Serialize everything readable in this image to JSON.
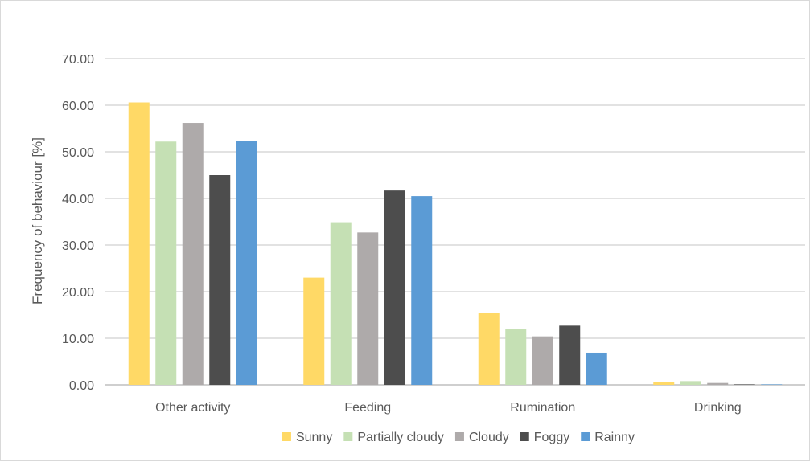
{
  "chart_data": {
    "type": "bar",
    "title": "",
    "xlabel": "",
    "ylabel": "Frequency of behaviour [%]",
    "ylim": [
      0,
      70
    ],
    "yticks": [
      "0.00",
      "10.00",
      "20.00",
      "30.00",
      "40.00",
      "50.00",
      "60.00",
      "70.00"
    ],
    "grid": true,
    "legend_position": "bottom",
    "categories": [
      "Other activity",
      "Feeding",
      "Rumination",
      "Drinking"
    ],
    "series": [
      {
        "name": "Sunny",
        "color": "#ffd966",
        "values": [
          60.6,
          23.0,
          15.4,
          0.6
        ]
      },
      {
        "name": "Partially cloudy",
        "color": "#c5e0b4",
        "values": [
          52.2,
          34.9,
          12.0,
          0.8
        ]
      },
      {
        "name": "Cloudy",
        "color": "#aeaaaa",
        "values": [
          56.2,
          32.7,
          10.4,
          0.4
        ]
      },
      {
        "name": "Foggy",
        "color": "#4d4d4d",
        "values": [
          45.0,
          41.7,
          12.7,
          0.1
        ]
      },
      {
        "name": "Rainny",
        "color": "#5b9bd5",
        "values": [
          52.4,
          40.5,
          6.9,
          0.1
        ]
      }
    ]
  }
}
